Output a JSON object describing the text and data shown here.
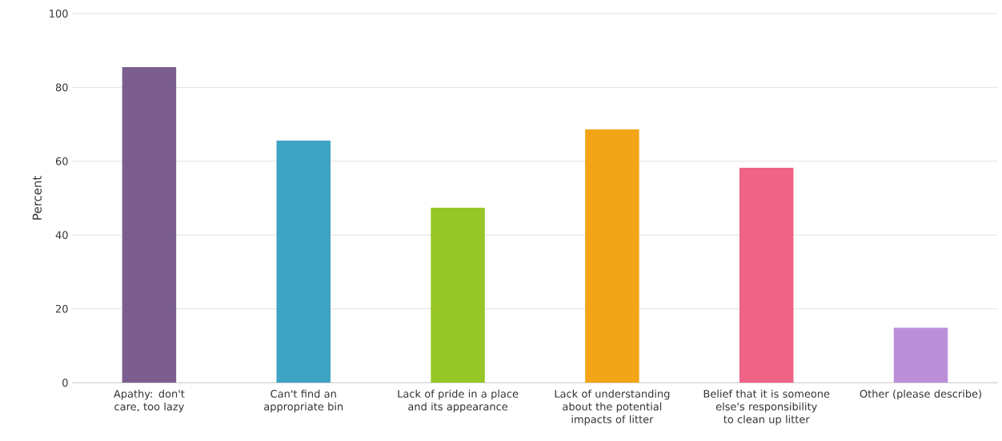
{
  "chart_data": {
    "type": "bar",
    "ylabel": "Percent",
    "categories": [
      "Apathy: don't care, too lazy",
      "Can't find an appropriate bin",
      "Lack of pride in a place and its appearance",
      "Lack of understanding about the potential impacts of litter",
      "Belief that it is someone else's responsibility to clean up litter",
      "Other (please describe)"
    ],
    "values": [
      85.5,
      65.6,
      47.4,
      68.6,
      58.2,
      14.9
    ],
    "colors": [
      "#7b5e8f",
      "#3fa3c4",
      "#97c628",
      "#f2a516",
      "#ee6386",
      "#bb8fd8"
    ],
    "ylim": [
      0,
      100
    ],
    "yticks": [
      0,
      20,
      40,
      60,
      80,
      100
    ],
    "grid": "y"
  }
}
